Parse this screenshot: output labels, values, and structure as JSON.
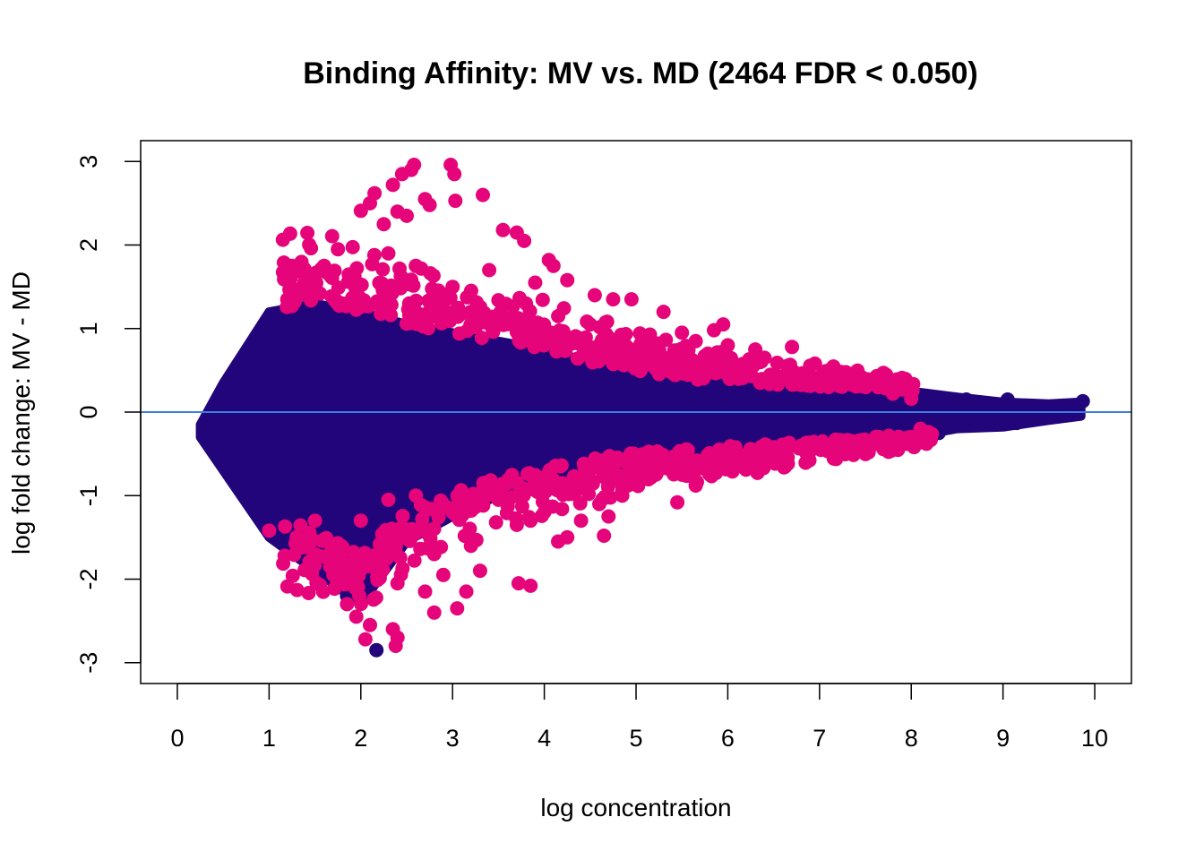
{
  "chart_data": {
    "type": "scatter",
    "title": "Binding Affinity: MV vs. MD (2464 FDR < 0.050)",
    "xlabel": "log concentration",
    "ylabel": "log fold change: MV - MD",
    "xlim": [
      -0.4,
      10.4
    ],
    "ylim": [
      -3.25,
      3.25
    ],
    "x_ticks": [
      "0",
      "1",
      "2",
      "3",
      "4",
      "5",
      "6",
      "7",
      "8",
      "9",
      "10"
    ],
    "y_ticks": [
      "-3",
      "-2",
      "-1",
      "0",
      "1",
      "2",
      "3"
    ],
    "reference_line": {
      "y": 0,
      "color": "#3b7fe0"
    },
    "grid": false,
    "legend": "none",
    "series": [
      {
        "role": "not significant",
        "color": "#22057a",
        "envelope_x": [
          0.25,
          0.5,
          1.0,
          1.5,
          2.0,
          2.5,
          3.0,
          3.5,
          4.0,
          4.5,
          5.0,
          5.5,
          6.0,
          6.5,
          7.0,
          7.5,
          8.0,
          8.5,
          9.0,
          9.5,
          9.85
        ],
        "envelope_upper": [
          -0.15,
          0.35,
          1.2,
          1.3,
          1.2,
          1.05,
          0.95,
          0.85,
          0.75,
          0.6,
          0.5,
          0.4,
          0.35,
          0.32,
          0.3,
          0.3,
          0.25,
          0.18,
          0.12,
          0.1,
          0.12
        ],
        "envelope_lower": [
          -0.3,
          -0.7,
          -1.5,
          -1.9,
          -2.3,
          -1.55,
          -1.25,
          -1.0,
          -0.85,
          -0.7,
          -0.6,
          -0.55,
          -0.5,
          -0.45,
          -0.4,
          -0.35,
          -0.3,
          -0.2,
          -0.18,
          -0.1,
          -0.05
        ],
        "points": [
          [
            9.87,
            0.13
          ],
          [
            9.58,
            0.06
          ],
          [
            9.6,
            -0.05
          ],
          [
            9.4,
            -0.05
          ],
          [
            9.15,
            -0.13
          ],
          [
            9.2,
            0.05
          ],
          [
            9.05,
            0.15
          ],
          [
            8.8,
            0.05
          ],
          [
            8.6,
            0.15
          ],
          [
            8.3,
            0.08
          ],
          [
            8.1,
            0.18
          ],
          [
            7.8,
            0.27
          ],
          [
            7.6,
            0.3
          ],
          [
            7.4,
            0.33
          ],
          [
            7.2,
            0.35
          ],
          [
            8.3,
            -0.25
          ],
          [
            7.95,
            -0.3
          ],
          [
            7.3,
            -0.42
          ],
          [
            2.17,
            -2.85
          ],
          [
            1.85,
            -2.2
          ],
          [
            1.6,
            -1.9
          ],
          [
            1.2,
            -1.55
          ]
        ]
      },
      {
        "role": "significant (FDR < 0.050)",
        "color": "#e5047a",
        "points": [
          [
            2.0,
            2.41
          ],
          [
            2.1,
            2.5
          ],
          [
            2.15,
            2.62
          ],
          [
            2.25,
            2.25
          ],
          [
            2.35,
            2.72
          ],
          [
            2.45,
            2.85
          ],
          [
            2.55,
            2.9
          ],
          [
            2.58,
            2.96
          ],
          [
            2.4,
            2.4
          ],
          [
            2.5,
            2.35
          ],
          [
            2.7,
            2.55
          ],
          [
            2.75,
            2.48
          ],
          [
            2.98,
            2.96
          ],
          [
            3.02,
            2.85
          ],
          [
            3.03,
            2.53
          ],
          [
            3.33,
            2.6
          ],
          [
            3.55,
            2.18
          ],
          [
            3.7,
            2.15
          ],
          [
            3.78,
            2.05
          ],
          [
            4.05,
            1.82
          ],
          [
            4.1,
            1.75
          ],
          [
            4.25,
            1.58
          ],
          [
            3.9,
            1.55
          ],
          [
            4.55,
            1.4
          ],
          [
            4.75,
            1.35
          ],
          [
            4.95,
            1.35
          ],
          [
            5.3,
            1.2
          ],
          [
            5.5,
            0.95
          ],
          [
            5.65,
            0.85
          ],
          [
            5.85,
            0.98
          ],
          [
            5.95,
            1.05
          ],
          [
            6.0,
            0.8
          ],
          [
            6.3,
            0.75
          ],
          [
            6.4,
            0.65
          ],
          [
            6.7,
            0.78
          ],
          [
            6.95,
            0.58
          ],
          [
            7.15,
            0.45
          ],
          [
            7.3,
            0.35
          ],
          [
            7.55,
            0.35
          ],
          [
            7.8,
            0.22
          ],
          [
            8.0,
            0.16
          ],
          [
            1.4,
            1.5
          ],
          [
            1.6,
            1.75
          ],
          [
            1.75,
            1.95
          ],
          [
            2.3,
            1.9
          ],
          [
            2.6,
            1.75
          ],
          [
            3.4,
            1.7
          ],
          [
            3.0,
            1.5
          ],
          [
            2.2,
            1.3
          ],
          [
            1.8,
            1.3
          ],
          [
            3.8,
            1.3
          ],
          [
            4.5,
            1.05
          ],
          [
            5.1,
            0.75
          ],
          [
            4.8,
            0.65
          ],
          [
            6.6,
            0.4
          ],
          [
            7.1,
            0.3
          ],
          [
            7.2,
            -0.35
          ],
          [
            7.65,
            -0.3
          ],
          [
            7.95,
            -0.38
          ],
          [
            8.1,
            -0.2
          ],
          [
            6.9,
            -0.45
          ],
          [
            6.5,
            -0.5
          ],
          [
            6.2,
            -0.55
          ],
          [
            6.05,
            -0.62
          ],
          [
            5.8,
            -0.6
          ],
          [
            5.5,
            -0.75
          ],
          [
            5.65,
            -0.88
          ],
          [
            5.45,
            -1.08
          ],
          [
            5.0,
            -0.85
          ],
          [
            4.85,
            -1.0
          ],
          [
            4.6,
            -1.1
          ],
          [
            4.7,
            -1.25
          ],
          [
            4.65,
            -1.48
          ],
          [
            4.4,
            -1.3
          ],
          [
            4.25,
            -1.5
          ],
          [
            4.15,
            -1.55
          ],
          [
            3.85,
            -1.3
          ],
          [
            3.7,
            -1.35
          ],
          [
            3.85,
            -2.08
          ],
          [
            3.72,
            -2.05
          ],
          [
            3.2,
            -1.6
          ],
          [
            3.15,
            -2.15
          ],
          [
            3.05,
            -2.35
          ],
          [
            2.8,
            -2.4
          ],
          [
            2.7,
            -2.15
          ],
          [
            2.4,
            -2.05
          ],
          [
            2.35,
            -2.6
          ],
          [
            2.38,
            -2.8
          ],
          [
            2.4,
            -2.7
          ],
          [
            2.1,
            -2.55
          ],
          [
            2.05,
            -2.72
          ],
          [
            1.95,
            -2.45
          ],
          [
            1.85,
            -2.3
          ],
          [
            1.7,
            -1.95
          ],
          [
            1.5,
            -1.7
          ],
          [
            1.3,
            -1.5
          ],
          [
            1.0,
            -1.42
          ],
          [
            1.5,
            -1.3
          ],
          [
            2.0,
            -1.3
          ],
          [
            2.5,
            -1.45
          ],
          [
            3.0,
            -1.2
          ],
          [
            3.5,
            -1.05
          ],
          [
            4.0,
            -0.95
          ],
          [
            4.5,
            -0.8
          ],
          [
            2.3,
            -1.05
          ],
          [
            2.6,
            -1.0
          ],
          [
            2.2,
            -1.8
          ],
          [
            2.8,
            -1.7
          ],
          [
            3.3,
            -1.9
          ],
          [
            2.9,
            -1.95
          ]
        ]
      }
    ]
  }
}
